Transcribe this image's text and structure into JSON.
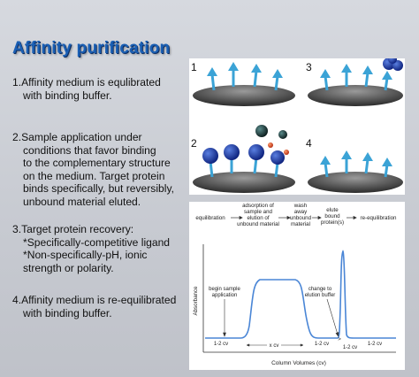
{
  "slide": {
    "title": "Affinity purification",
    "bullets": {
      "b1": {
        "l1": "1.Affinity medium is equlibrated",
        "l2": "with binding buffer."
      },
      "b2": {
        "l1": "2.Sample application under",
        "l2": "conditions that favor binding",
        "l3": "to the complementary structure",
        "l4": "on the medium.  Target protein",
        "l5": "binds specifically, but reversibly,",
        "l6": "unbound material eluted."
      },
      "b3": {
        "l1": "3.Target protein recovery:",
        "l2": "*Specifically-competitive ligand",
        "l3": "*Non-specifically-pH, ionic",
        "l4": "strength or polarity."
      },
      "b4": {
        "l1": "4.Affinity medium is re-equilibrated",
        "l2": "with binding buffer."
      }
    }
  },
  "panels": {
    "n1": "1",
    "n2": "2",
    "n3": "3",
    "n4": "4"
  },
  "diagram": {
    "stages": {
      "equilibration": "equilibration",
      "adsorption_l1": "adsorption of",
      "adsorption_l2": "sample and",
      "adsorption_l3": "elution of",
      "adsorption_l4": "unbound material",
      "wash_l1": "wash",
      "wash_l2": "away",
      "wash_l3": "unbound",
      "wash_l4": "material",
      "elute_l1": "elute",
      "elute_l2": "bound",
      "elute_l3": "protein(s)",
      "reeq": "re-equilibration"
    },
    "ylabel": "Absorbance",
    "xlabel": "Column Volumes (cv)",
    "annot_begin_l1": "begin sample",
    "annot_begin_l2": "application",
    "annot_change_l1": "change to",
    "annot_change_l2": "elution buffer",
    "cv1": "1-2 cv",
    "cvx": "x cv",
    "cv2": "1-2 cv",
    "cvgt": ">",
    "cv3": "1-2 cv",
    "cv4": "1-2 cv",
    "curve_color": "#4a86d6"
  }
}
